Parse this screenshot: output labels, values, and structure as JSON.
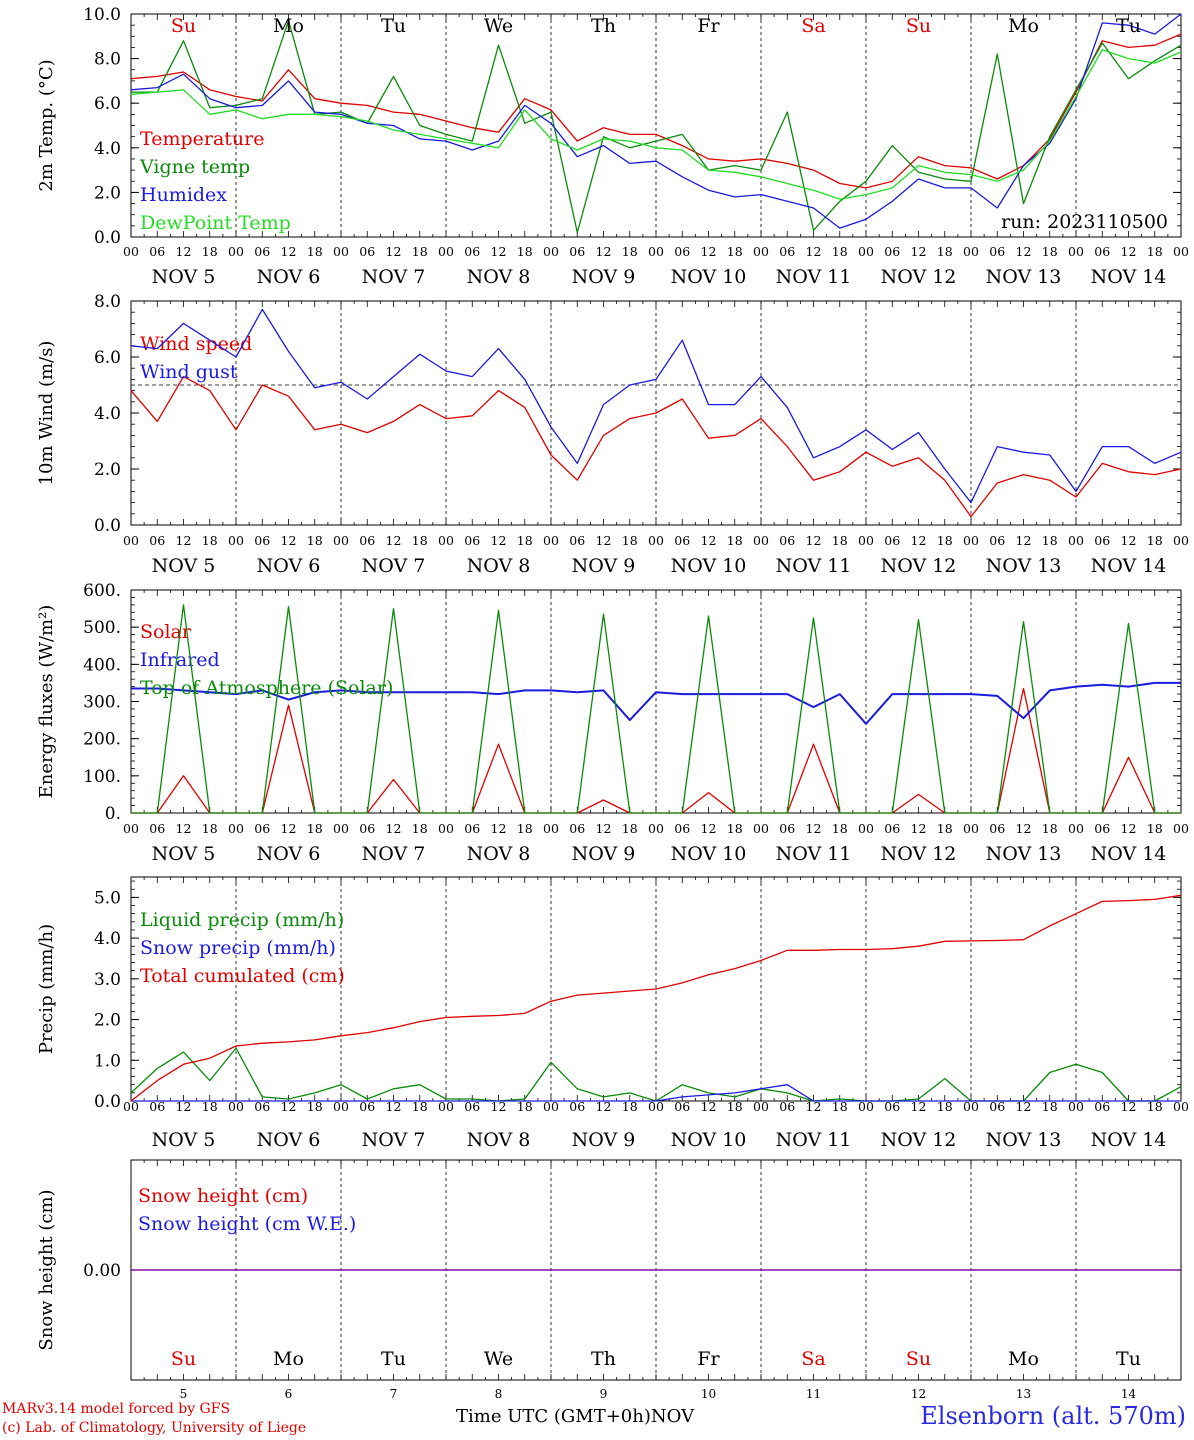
{
  "colors": {
    "red": "#e00000",
    "green": "#0a8a0a",
    "blue": "#1a1ae0",
    "lightgreen": "#22dd22",
    "purple": "#8000a0",
    "black": "#000000"
  },
  "footer": {
    "model_line": "MARv3.14 model forced by GFS",
    "copyright_line": "(c) Lab. of Climatology, University of Liege",
    "xaxis_label": "Time UTC (GMT+0h)",
    "month_label": "NOV",
    "station": "Elsenborn (alt. 570m)"
  },
  "chart_data": [
    {
      "type": "line",
      "ylabel": "2m Temp. (°C)",
      "ylim": [
        0,
        10
      ],
      "yticks": [
        "0.0",
        "2.0",
        "4.0",
        "6.0",
        "8.0",
        "10.0"
      ],
      "run_label": "run: 2023110500",
      "day_names": [
        "Su",
        "Mo",
        "Tu",
        "We",
        "Th",
        "Fr",
        "Sa",
        "Su",
        "Mo",
        "Tu"
      ],
      "day_colors": [
        "red",
        "black",
        "black",
        "black",
        "black",
        "black",
        "red",
        "red",
        "black",
        "black"
      ],
      "hour_ticks": [
        "00",
        "06",
        "12",
        "18"
      ],
      "date_labels": [
        "NOV  5",
        "NOV  6",
        "NOV  7",
        "NOV  8",
        "NOV  9",
        "NOV 10",
        "NOV 11",
        "NOV 12",
        "NOV 13",
        "NOV 14"
      ],
      "x_days": [
        0,
        0.25,
        0.5,
        0.75,
        1,
        1.25,
        1.5,
        1.75,
        2,
        2.25,
        2.5,
        2.75,
        3,
        3.25,
        3.5,
        3.75,
        4,
        4.25,
        4.5,
        4.75,
        5,
        5.25,
        5.5,
        5.75,
        6,
        6.25,
        6.5,
        6.75,
        7,
        7.25,
        7.5,
        7.75,
        8,
        8.25,
        8.5,
        8.75,
        9,
        9.25,
        9.5,
        9.75,
        10
      ],
      "series": [
        {
          "name": "Temperature",
          "color": "red",
          "values": [
            7.1,
            7.2,
            7.4,
            6.6,
            6.3,
            6.1,
            7.5,
            6.2,
            6.0,
            5.9,
            5.6,
            5.5,
            5.2,
            4.9,
            4.7,
            6.2,
            5.7,
            4.3,
            4.9,
            4.6,
            4.6,
            4.1,
            3.5,
            3.4,
            3.5,
            3.3,
            3.0,
            2.4,
            2.2,
            2.5,
            3.6,
            3.2,
            3.1,
            2.6,
            3.2,
            4.4,
            6.5,
            8.8,
            8.5,
            8.6,
            9.1
          ]
        },
        {
          "name": "Vigne temp",
          "color": "green",
          "values": [
            6.5,
            6.5,
            8.8,
            5.8,
            5.9,
            6.2,
            9.7,
            5.5,
            5.6,
            5.1,
            7.2,
            5.0,
            4.6,
            4.3,
            8.6,
            5.1,
            5.6,
            0.2,
            4.5,
            4.0,
            4.3,
            4.6,
            3.0,
            3.2,
            3.0,
            5.6,
            0.3,
            1.6,
            2.5,
            4.1,
            2.9,
            2.6,
            2.5,
            8.2,
            1.5,
            4.5,
            6.6,
            8.7,
            7.1,
            7.9,
            8.6
          ]
        },
        {
          "name": "Humidex",
          "color": "blue",
          "values": [
            6.6,
            6.7,
            7.3,
            6.2,
            5.8,
            5.9,
            7.0,
            5.6,
            5.5,
            5.1,
            5.0,
            4.4,
            4.3,
            3.9,
            4.3,
            5.9,
            5.1,
            3.6,
            4.1,
            3.3,
            3.4,
            2.7,
            2.1,
            1.8,
            1.9,
            1.6,
            1.3,
            0.4,
            0.8,
            1.6,
            2.6,
            2.2,
            2.2,
            1.3,
            3.2,
            4.2,
            6.2,
            9.6,
            9.5,
            9.1,
            10.0
          ]
        },
        {
          "name": "DewPoint Temp",
          "color": "lightgreen",
          "values": [
            6.4,
            6.5,
            6.6,
            5.5,
            5.7,
            5.3,
            5.5,
            5.5,
            5.4,
            5.2,
            4.8,
            4.6,
            4.4,
            4.2,
            4.0,
            5.7,
            4.4,
            3.9,
            4.4,
            4.3,
            4.0,
            3.9,
            3.0,
            2.9,
            2.7,
            2.4,
            2.1,
            1.7,
            1.9,
            2.2,
            3.2,
            2.9,
            2.8,
            2.5,
            3.0,
            4.3,
            6.3,
            8.4,
            8.0,
            7.8,
            8.3
          ]
        }
      ]
    },
    {
      "type": "line",
      "ylabel": "10m Wind (m/s)",
      "ylim": [
        0,
        8
      ],
      "yticks": [
        "0.0",
        "2.0",
        "4.0",
        "6.0",
        "8.0"
      ],
      "reference_line": 5.0,
      "hour_ticks": [
        "00",
        "06",
        "12",
        "18"
      ],
      "date_labels": [
        "NOV  5",
        "NOV  6",
        "NOV  7",
        "NOV  8",
        "NOV  9",
        "NOV 10",
        "NOV 11",
        "NOV 12",
        "NOV 13",
        "NOV 14"
      ],
      "x_days": [
        0,
        0.25,
        0.5,
        0.75,
        1,
        1.25,
        1.5,
        1.75,
        2,
        2.25,
        2.5,
        2.75,
        3,
        3.25,
        3.5,
        3.75,
        4,
        4.25,
        4.5,
        4.75,
        5,
        5.25,
        5.5,
        5.75,
        6,
        6.25,
        6.5,
        6.75,
        7,
        7.25,
        7.5,
        7.75,
        8,
        8.25,
        8.5,
        8.75,
        9,
        9.25,
        9.5,
        9.75,
        10
      ],
      "series": [
        {
          "name": "Wind speed",
          "color": "red",
          "values": [
            4.8,
            3.7,
            5.3,
            4.8,
            3.4,
            5.0,
            4.6,
            3.4,
            3.6,
            3.3,
            3.7,
            4.3,
            3.8,
            3.9,
            4.8,
            4.2,
            2.5,
            1.6,
            3.2,
            3.8,
            4.0,
            4.5,
            3.1,
            3.2,
            3.8,
            2.8,
            1.6,
            1.9,
            2.6,
            2.1,
            2.4,
            1.6,
            0.3,
            1.5,
            1.8,
            1.6,
            1.0,
            2.2,
            1.9,
            1.8,
            2.0
          ]
        },
        {
          "name": "Wind gust",
          "color": "blue",
          "values": [
            6.4,
            6.3,
            7.2,
            6.6,
            6.0,
            7.7,
            6.2,
            4.9,
            5.1,
            4.5,
            5.3,
            6.1,
            5.5,
            5.3,
            6.3,
            5.2,
            3.5,
            2.2,
            4.3,
            5.0,
            5.2,
            6.6,
            4.3,
            4.3,
            5.3,
            4.2,
            2.4,
            2.8,
            3.4,
            2.7,
            3.3,
            2.0,
            0.8,
            2.8,
            2.6,
            2.5,
            1.2,
            2.8,
            2.8,
            2.2,
            2.6
          ]
        }
      ]
    },
    {
      "type": "line",
      "ylabel": "Energy fluxes (W/m²)",
      "ylim": [
        0,
        600
      ],
      "yticks": [
        "0.",
        "100.",
        "200.",
        "300.",
        "400.",
        "500.",
        "600."
      ],
      "hour_ticks": [
        "00",
        "06",
        "12",
        "18"
      ],
      "date_labels": [
        "NOV  5",
        "NOV  6",
        "NOV  7",
        "NOV  8",
        "NOV  9",
        "NOV 10",
        "NOV 11",
        "NOV 12",
        "NOV 13",
        "NOV 14"
      ],
      "x_days": [
        0,
        0.25,
        0.5,
        0.75,
        1,
        1.25,
        1.5,
        1.75,
        2,
        2.25,
        2.5,
        2.75,
        3,
        3.25,
        3.5,
        3.75,
        4,
        4.25,
        4.5,
        4.75,
        5,
        5.25,
        5.5,
        5.75,
        6,
        6.25,
        6.5,
        6.75,
        7,
        7.25,
        7.5,
        7.75,
        8,
        8.25,
        8.5,
        8.75,
        9,
        9.25,
        9.5,
        9.75,
        10
      ],
      "series": [
        {
          "name": "Solar",
          "color": "red",
          "values": [
            0,
            0,
            100,
            0,
            0,
            0,
            290,
            0,
            0,
            0,
            90,
            0,
            0,
            0,
            185,
            0,
            0,
            0,
            35,
            0,
            0,
            0,
            55,
            0,
            0,
            0,
            185,
            0,
            0,
            0,
            50,
            0,
            0,
            0,
            335,
            0,
            0,
            0,
            150,
            0,
            0
          ]
        },
        {
          "name": "Infrared",
          "color": "blue",
          "values": [
            335,
            335,
            330,
            325,
            320,
            330,
            305,
            325,
            330,
            325,
            325,
            325,
            325,
            325,
            320,
            330,
            330,
            325,
            330,
            250,
            325,
            320,
            320,
            320,
            320,
            320,
            285,
            320,
            240,
            320,
            320,
            320,
            320,
            315,
            255,
            330,
            340,
            345,
            340,
            350,
            350
          ]
        },
        {
          "name": "Top of Atmosphere (Solar)",
          "color": "green",
          "values": [
            0,
            0,
            560,
            0,
            0,
            0,
            555,
            0,
            0,
            0,
            550,
            0,
            0,
            0,
            545,
            0,
            0,
            0,
            535,
            0,
            0,
            0,
            530,
            0,
            0,
            0,
            525,
            0,
            0,
            0,
            520,
            0,
            0,
            0,
            515,
            0,
            0,
            0,
            510,
            0,
            0
          ]
        }
      ]
    },
    {
      "type": "line",
      "ylabel": "Precip (mm/h)",
      "ylim": [
        0,
        5.5
      ],
      "yticks": [
        "0.0",
        "1.0",
        "2.0",
        "3.0",
        "4.0",
        "5.0"
      ],
      "hour_ticks": [
        "00",
        "06",
        "12",
        "18"
      ],
      "date_labels": [
        "NOV  5",
        "NOV  6",
        "NOV  7",
        "NOV  8",
        "NOV  9",
        "NOV 10",
        "NOV 11",
        "NOV 12",
        "NOV 13",
        "NOV 14"
      ],
      "x_days": [
        0,
        0.25,
        0.5,
        0.75,
        1,
        1.25,
        1.5,
        1.75,
        2,
        2.25,
        2.5,
        2.75,
        3,
        3.25,
        3.5,
        3.75,
        4,
        4.25,
        4.5,
        4.75,
        5,
        5.25,
        5.5,
        5.75,
        6,
        6.25,
        6.5,
        6.75,
        7,
        7.25,
        7.5,
        7.75,
        8,
        8.25,
        8.5,
        8.75,
        9,
        9.25,
        9.5,
        9.75,
        10
      ],
      "series": [
        {
          "name": "Liquid precip (mm/h)",
          "color": "green",
          "values": [
            0.2,
            0.8,
            1.2,
            0.5,
            1.3,
            0.1,
            0.05,
            0.2,
            0.4,
            0.05,
            0.3,
            0.4,
            0.05,
            0.05,
            0.0,
            0.05,
            0.95,
            0.3,
            0.1,
            0.2,
            0.0,
            0.4,
            0.2,
            0.1,
            0.3,
            0.2,
            0.0,
            0.05,
            0.0,
            0.0,
            0.05,
            0.55,
            0.0,
            0.0,
            0.0,
            0.7,
            0.9,
            0.7,
            0.0,
            0.0,
            0.35
          ]
        },
        {
          "name": "Snow precip (mm/h)",
          "color": "blue",
          "values": [
            0,
            0,
            0,
            0,
            0,
            0,
            0,
            0,
            0,
            0,
            0,
            0,
            0,
            0,
            0,
            0,
            0,
            0,
            0,
            0,
            0,
            0.1,
            0.15,
            0.2,
            0.3,
            0.4,
            0,
            0,
            0,
            0,
            0,
            0,
            0,
            0,
            0,
            0,
            0,
            0,
            0,
            0,
            0
          ]
        },
        {
          "name": "Total cumulated (cm)",
          "color": "red",
          "values": [
            0.0,
            0.5,
            0.9,
            1.05,
            1.35,
            1.42,
            1.45,
            1.5,
            1.6,
            1.68,
            1.8,
            1.95,
            2.05,
            2.08,
            2.1,
            2.15,
            2.45,
            2.6,
            2.65,
            2.7,
            2.75,
            2.9,
            3.1,
            3.25,
            3.45,
            3.7,
            3.7,
            3.72,
            3.72,
            3.74,
            3.8,
            3.92,
            3.93,
            3.94,
            3.96,
            4.3,
            4.6,
            4.9,
            4.92,
            4.95,
            5.05
          ]
        }
      ]
    },
    {
      "type": "line",
      "ylabel": "Snow height (cm)",
      "ylim": [
        -1,
        1
      ],
      "yticks": [
        "0.00"
      ],
      "day_names": [
        "Su",
        "Mo",
        "Tu",
        "We",
        "Th",
        "Fr",
        "Sa",
        "Su",
        "Mo",
        "Tu"
      ],
      "day_colors": [
        "red",
        "black",
        "black",
        "black",
        "black",
        "black",
        "red",
        "red",
        "black",
        "black"
      ],
      "day_numbers": [
        "5",
        "6",
        "7",
        "8",
        "9",
        "10",
        "11",
        "12",
        "13",
        "14"
      ],
      "series": [
        {
          "name": "Snow height (cm)",
          "color": "red",
          "values": [
            0,
            0
          ]
        },
        {
          "name": "Snow height (cm W.E.)",
          "color": "blue",
          "values": [
            0,
            0
          ]
        }
      ]
    }
  ]
}
